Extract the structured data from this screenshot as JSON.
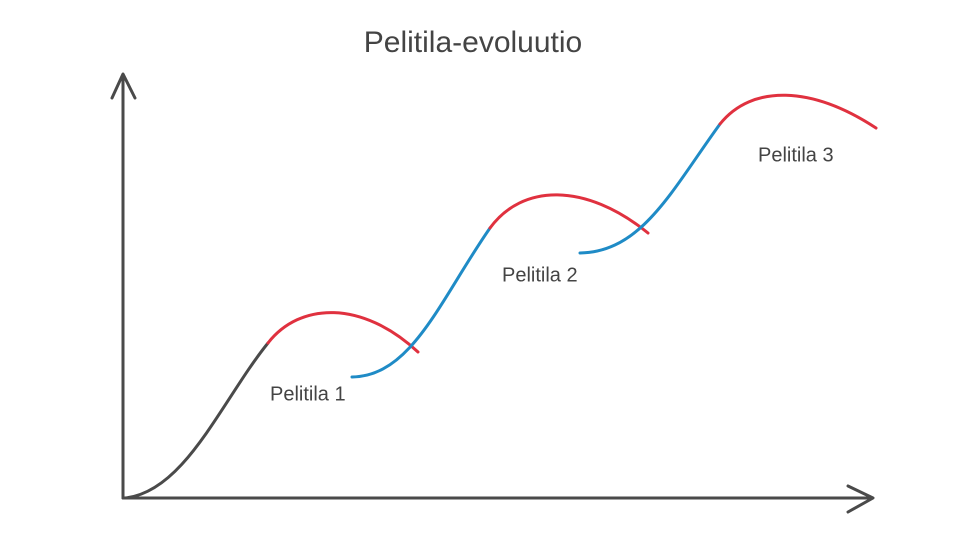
{
  "title": "Pelitila-evoluutio",
  "labels": [
    "Pelitila 1",
    "Pelitila 2",
    "Pelitila 3"
  ]
}
